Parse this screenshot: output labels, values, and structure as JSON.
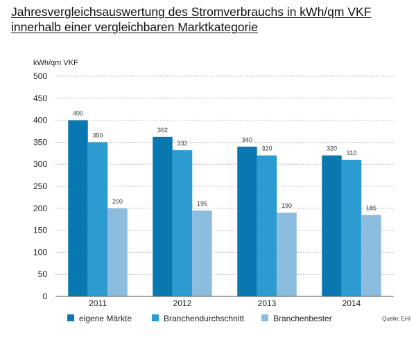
{
  "title_lines": [
    "Jahresvergleichsauswertung des Stromverbrauchs in kWh/qm VKF",
    "innerhalb einer vergleichbaren Marktkategorie"
  ],
  "source": "Quelle: EHI",
  "colors": {
    "eigene": "#0a78b0",
    "durchschnitt": "#2b9bd0",
    "bester": "#8cbcde",
    "grid": "#9a9a9a",
    "background": "#ffffff"
  },
  "chart_data": {
    "type": "bar",
    "ylabel": "kWh/qm VKF",
    "xlabel": "",
    "ylim": [
      0,
      500
    ],
    "yticks": [
      0,
      50,
      100,
      150,
      200,
      250,
      300,
      350,
      400,
      450,
      500
    ],
    "grid": true,
    "legend_position": "bottom",
    "categories": [
      "2011",
      "2012",
      "2013",
      "2014"
    ],
    "series": [
      {
        "name": "eigene Märkte",
        "values": [
          400,
          362,
          340,
          320
        ],
        "color": "#0a78b0"
      },
      {
        "name": "Branchendurchschnitt",
        "values": [
          350,
          332,
          320,
          310
        ],
        "color": "#2b9bd0"
      },
      {
        "name": "Branchenbester",
        "values": [
          200,
          195,
          190,
          185
        ],
        "color": "#8cbcde"
      }
    ]
  }
}
